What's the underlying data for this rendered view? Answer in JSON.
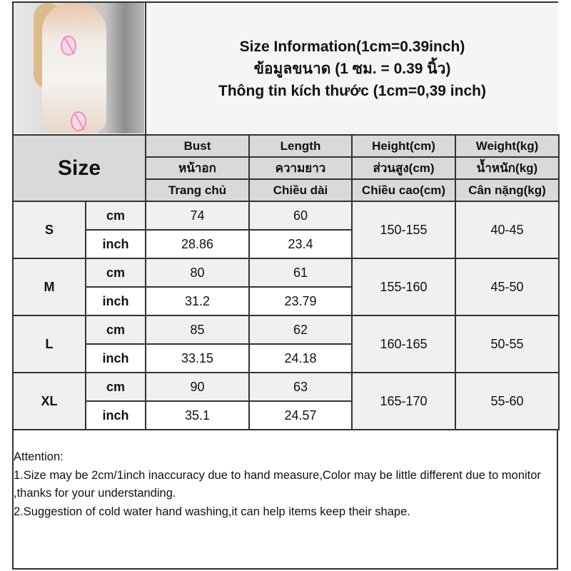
{
  "title": {
    "line1": "Size Information(1cm=0.39inch)",
    "line2": "ข้อมูลขนาด (1 ซม. = 0.39 นิ้ว)",
    "line3": "Thông tin kích thước (1cm=0,39 inch)"
  },
  "table": {
    "size_header": "Size",
    "columns": [
      {
        "en": "Bust",
        "th": "หน้าอก",
        "vi": "Trang chủ"
      },
      {
        "en": "Length",
        "th": "ความยาว",
        "vi": "Chiều dài"
      },
      {
        "en": "Height(cm)",
        "th": "ส่วนสูง(cm)",
        "vi": "Chiều cao(cm)"
      },
      {
        "en": "Weight(kg)",
        "th": "น้ำหนัก(kg)",
        "vi": "Cân nặng(kg)"
      }
    ],
    "rows": [
      {
        "size": "S",
        "cm_label": "cm",
        "inch_label": "inch",
        "bust_cm": "74",
        "bust_in": "28.86",
        "length_cm": "60",
        "length_in": "23.4",
        "height": "150-155",
        "weight": "40-45"
      },
      {
        "size": "M",
        "cm_label": "cm",
        "inch_label": "inch",
        "bust_cm": "80",
        "bust_in": "31.2",
        "length_cm": "61",
        "length_in": "23.79",
        "height": "155-160",
        "weight": "45-50"
      },
      {
        "size": "L",
        "cm_label": "cm",
        "inch_label": "inch",
        "bust_cm": "85",
        "bust_in": "33.15",
        "length_cm": "62",
        "length_in": "24.18",
        "height": "160-165",
        "weight": "50-55"
      },
      {
        "size": "XL",
        "cm_label": "cm",
        "inch_label": "inch",
        "bust_cm": "90",
        "bust_in": "35.1",
        "length_cm": "63",
        "length_in": "24.57",
        "height": "165-170",
        "weight": "55-60"
      }
    ]
  },
  "notes": {
    "heading": "Attention:",
    "items": [
      "1.Size may be 2cm/1inch inaccuracy due to hand measure,Color may be little different due to monitor ,thanks for your understanding.",
      "2.Suggestion of cold water hand washing,it can help items keep their shape."
    ]
  },
  "colors": {
    "header_bg": "#d9d9d9",
    "cm_row_bg": "#f0f0f0",
    "border": "#333333",
    "censor": "#f08cc0"
  }
}
